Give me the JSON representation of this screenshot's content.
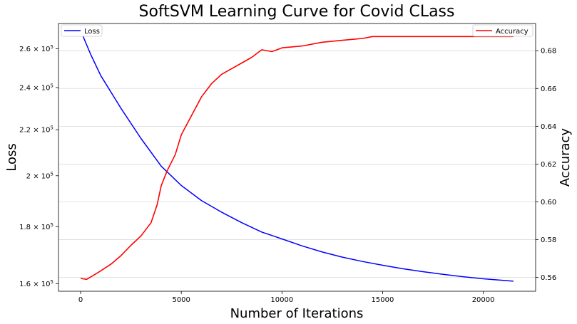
{
  "chart_data": {
    "type": "line",
    "title": "SoftSVM Learning Curve for Covid CLass",
    "xlabel": "Number of Iterations",
    "ylabel_left": "Loss",
    "ylabel_right": "Accuracy",
    "xlim": [
      -1100,
      22600
    ],
    "x_ticks": [
      0,
      5000,
      10000,
      15000,
      20000
    ],
    "y_left": {
      "scale": "log",
      "lim": [
        157500,
        274000
      ],
      "ticks": [
        {
          "value": 160000,
          "mantissa": "1.6",
          "base": "10",
          "exp": "5"
        },
        {
          "value": 180000,
          "mantissa": "1.8",
          "base": "10",
          "exp": "5"
        },
        {
          "value": 200000,
          "mantissa": "2",
          "base": "10",
          "exp": "5"
        },
        {
          "value": 220000,
          "mantissa": "2.2",
          "base": "10",
          "exp": "5"
        },
        {
          "value": 240000,
          "mantissa": "2.4",
          "base": "10",
          "exp": "5"
        },
        {
          "value": 260000,
          "mantissa": "2.6",
          "base": "10",
          "exp": "5"
        }
      ]
    },
    "y_right": {
      "scale": "linear",
      "lim": [
        0.5527,
        0.6944
      ],
      "ticks": [
        "0.56",
        "0.58",
        "0.60",
        "0.62",
        "0.64",
        "0.66",
        "0.68"
      ]
    },
    "grid": "horizontal (right axis)",
    "series": [
      {
        "name": "Loss",
        "axis": "left",
        "color": "#0000ff",
        "x": [
          0,
          500,
          1000,
          2000,
          3000,
          4000,
          5000,
          6000,
          7000,
          8000,
          9000,
          10000,
          11000,
          12000,
          13000,
          14000,
          15000,
          16000,
          17000,
          18000,
          19000,
          20000,
          21500
        ],
        "y": [
          270000,
          257000,
          246000,
          230000,
          216000,
          204000,
          196000,
          190000,
          185500,
          181500,
          178000,
          175500,
          173000,
          170800,
          169000,
          167500,
          166200,
          165000,
          164000,
          163100,
          162300,
          161600,
          160800
        ]
      },
      {
        "name": "Accuracy",
        "axis": "right",
        "color": "#ff0000",
        "x": [
          0,
          300,
          700,
          1000,
          1500,
          2000,
          2500,
          3000,
          3500,
          3800,
          4000,
          4300,
          4700,
          5000,
          5500,
          6000,
          6500,
          7000,
          7500,
          8000,
          8500,
          9000,
          9500,
          10000,
          11000,
          12000,
          13000,
          14000,
          14500,
          15500,
          21500
        ],
        "y": [
          0.5595,
          0.559,
          0.5615,
          0.5635,
          0.567,
          0.5715,
          0.577,
          0.582,
          0.589,
          0.5985,
          0.6085,
          0.6165,
          0.625,
          0.6355,
          0.6455,
          0.6555,
          0.6625,
          0.6675,
          0.6705,
          0.6735,
          0.6765,
          0.6805,
          0.6795,
          0.6815,
          0.6825,
          0.6845,
          0.6855,
          0.6865,
          0.6875,
          0.6875,
          0.6875
        ]
      }
    ],
    "legends": [
      {
        "label": "Loss",
        "color": "#0000ff",
        "placement": "top-left"
      },
      {
        "label": "Accuracy",
        "color": "#ff0000",
        "placement": "top-right"
      }
    ]
  }
}
